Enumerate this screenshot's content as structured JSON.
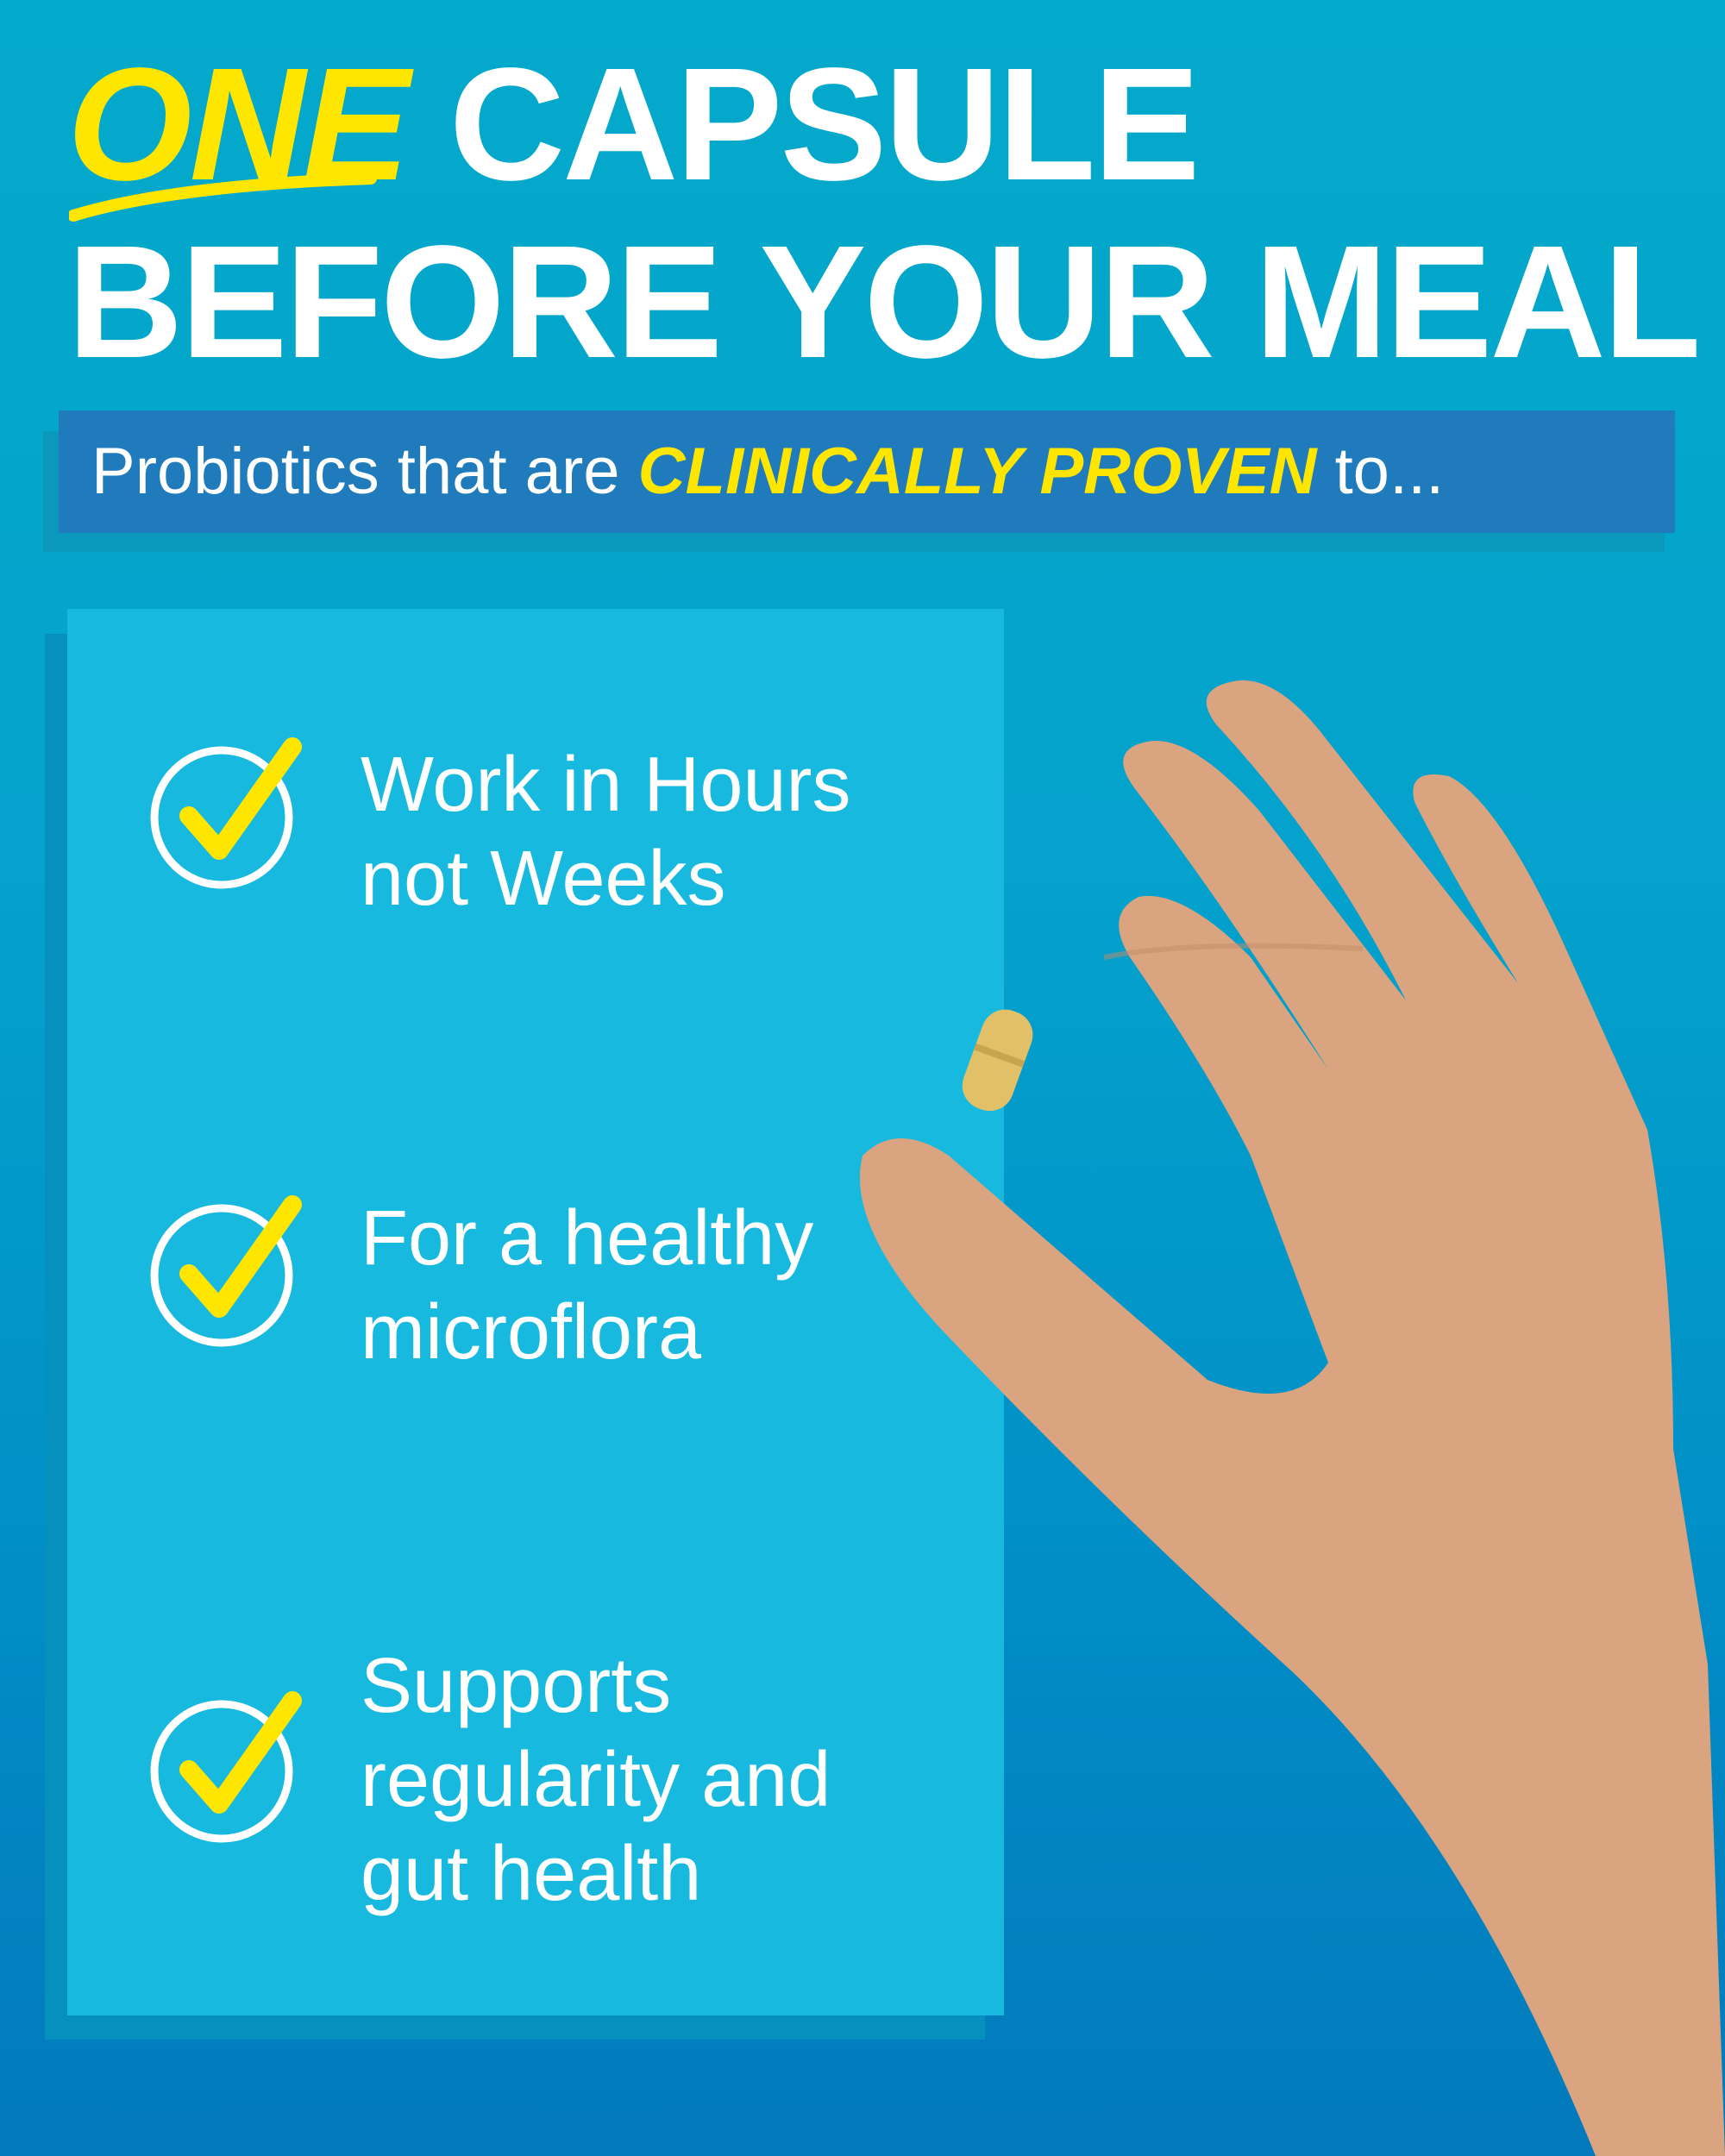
{
  "headline": {
    "highlight": "ONE",
    "line1_rest": "CAPSULE",
    "line2": "BEFORE YOUR MEAL"
  },
  "banner": {
    "prefix": "Probiotics that are ",
    "highlight": "CLINICALLY PROVEN",
    "suffix": " to..."
  },
  "benefits": [
    {
      "icon": "check-circle-icon",
      "line1": "Work in Hours",
      "line2": "not Weeks"
    },
    {
      "icon": "check-circle-icon",
      "line1": "For a healthy",
      "line2": "microflora"
    },
    {
      "icon": "check-circle-icon",
      "line1": "Supports",
      "line2": "regularity and",
      "line3": "gut health"
    }
  ],
  "colors": {
    "background": "#03a9ca",
    "banner": "#1f7bbb",
    "panel": "#17b9df",
    "accent": "#ffe600",
    "text": "#ffffff"
  }
}
